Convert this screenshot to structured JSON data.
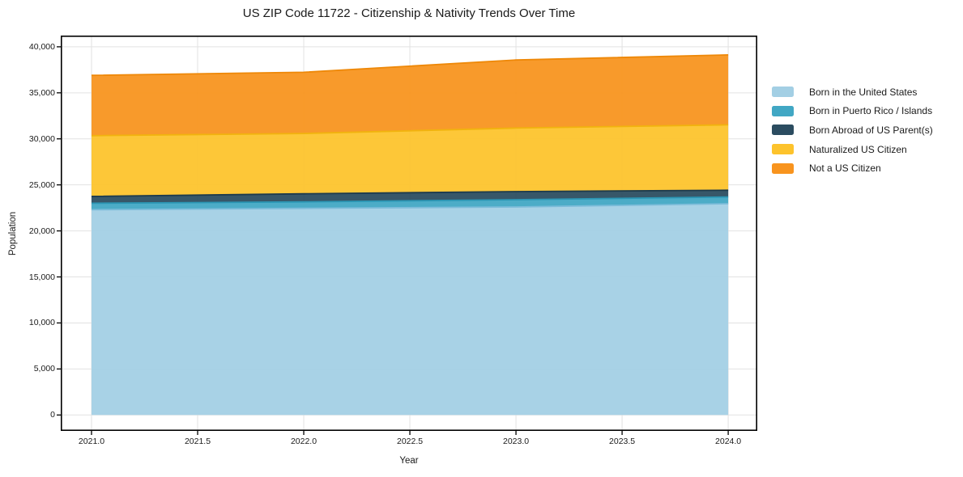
{
  "chart_data": {
    "type": "area",
    "stacked": true,
    "title": "US ZIP Code 11722 - Citizenship & Nativity Trends Over Time",
    "xlabel": "Year",
    "ylabel": "Population",
    "x": [
      2021,
      2022,
      2023,
      2024
    ],
    "series": [
      {
        "name": "Born in the United States",
        "color": "#a3cfe4",
        "edge_color": "#7cbcd9",
        "values": [
          22300,
          22450,
          22600,
          22950
        ]
      },
      {
        "name": "Born in Puerto Rico / Islands",
        "color": "#41a7c4",
        "edge_color": "#2b96b4",
        "values": [
          700,
          700,
          790,
          740
        ]
      },
      {
        "name": "Born Abroad of US Parent(s)",
        "color": "#2b4c60",
        "edge_color": "#1d3b4d",
        "values": [
          750,
          880,
          880,
          730
        ]
      },
      {
        "name": "Naturalized US Citizen",
        "color": "#fdc32c",
        "edge_color": "#f1b30e",
        "values": [
          6600,
          6550,
          6900,
          7100
        ]
      },
      {
        "name": "Not a US Citizen",
        "color": "#f8941e",
        "edge_color": "#ee8808",
        "values": [
          6550,
          6650,
          7400,
          7600
        ]
      }
    ],
    "stacked_totals": [
      36900,
      37230,
      38570,
      39120
    ],
    "xlim": [
      2020.855,
      2024.137
    ],
    "ylim": [
      -1730,
      41220
    ],
    "xticks": [
      2021.0,
      2021.5,
      2022.0,
      2022.5,
      2023.0,
      2023.5,
      2024.0
    ],
    "xtick_labels": [
      "2021.0",
      "2021.5",
      "2022.0",
      "2022.5",
      "2023.0",
      "2023.5",
      "2024.0"
    ],
    "yticks": [
      0,
      5000,
      10000,
      15000,
      20000,
      25000,
      30000,
      35000,
      40000
    ],
    "ytick_labels": [
      "0",
      "5,000",
      "10,000",
      "15,000",
      "20,000",
      "25,000",
      "30,000",
      "35,000",
      "40,000"
    ],
    "grid": true,
    "grid_color": "#e2e2e2",
    "spine_color": "#000000",
    "background_color": "#ffffff",
    "legend_position": "right-outside"
  }
}
